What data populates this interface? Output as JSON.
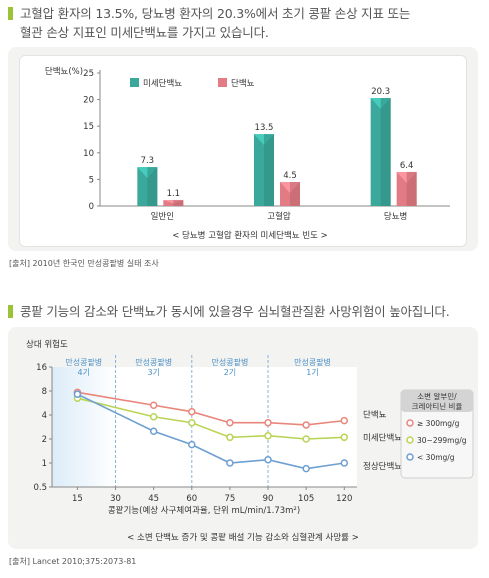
{
  "colors": {
    "accent": "#9cc23a",
    "teal": "#3aa89b",
    "pink": "#e27b84",
    "series": [
      "#e9867c",
      "#b9d455",
      "#6d9fd2"
    ],
    "band_fill": "#dcecf8",
    "band_label": "#4a90c9"
  },
  "section1": {
    "headline_line1": "고혈압 환자의 13.5%, 당뇨병 환자의 20.3%에서 초기 콩팥 손상 지표 또는",
    "headline_line2": "혈관 손상 지표인 미세단백뇨를 가지고 있습니다.",
    "source": "[출처] 2010년 한국인 만성콩팥병 실태 조사"
  },
  "section2": {
    "headline": "콩팥 기능의 감소와 단백뇨가 동시에 있을경우 심뇌혈관질환 사망위험이 높아집니다.",
    "source": "[출처] Lancet 2010;375:2073-81"
  },
  "chart_data": [
    {
      "type": "bar",
      "ylabel": "단백뇨(%)",
      "ylim": [
        0,
        25
      ],
      "yticks": [
        0,
        5,
        10,
        15,
        20,
        25
      ],
      "categories": [
        "일반인",
        "고혈압",
        "당뇨병"
      ],
      "series": [
        {
          "name": "미세단백뇨",
          "values": [
            7.3,
            13.5,
            20.3
          ],
          "labels": [
            "7.3",
            "13.5",
            "20.3"
          ]
        },
        {
          "name": "단백뇨",
          "values": [
            1.1,
            4.5,
            6.4
          ],
          "labels": [
            "1.1",
            "4.5",
            "6.4"
          ]
        }
      ],
      "legend": "top",
      "caption": "< 당뇨병 고혈압 환자의 미세단백뇨 빈도 >"
    },
    {
      "type": "line",
      "ylabel": "상대 위험도",
      "xlabel": "콩팥기능(예상 사구체여과율, 단위 mL/min/1.73m²)",
      "y_scale": "log",
      "ylim": [
        0.5,
        16
      ],
      "yticks": [
        0.5,
        1,
        2,
        4,
        8,
        16
      ],
      "ytick_labels": [
        "0.5",
        "1",
        "2",
        "4",
        "8",
        "16"
      ],
      "xlim": [
        5,
        125
      ],
      "xticks": [
        15,
        30,
        45,
        60,
        75,
        90,
        105,
        120
      ],
      "stage_boundaries": [
        30,
        60,
        90
      ],
      "stages": [
        {
          "label1": "만성콩팥병",
          "label2": "4기",
          "from": 5,
          "to": 30
        },
        {
          "label1": "만성콩팥병",
          "label2": "3기",
          "from": 30,
          "to": 60
        },
        {
          "label1": "만성콩팥병",
          "label2": "2기",
          "from": 60,
          "to": 90
        },
        {
          "label1": "만성콩팥병",
          "label2": "1기",
          "from": 90,
          "to": 125
        }
      ],
      "x": [
        15,
        45,
        60,
        75,
        90,
        105,
        120
      ],
      "series": [
        {
          "name": "단백뇨",
          "legend": "≥ 300mg/g",
          "values": [
            7.7,
            5.3,
            4.4,
            3.2,
            3.2,
            3.0,
            3.4
          ]
        },
        {
          "name": "미세단백뇨",
          "legend": "30~299mg/g",
          "values": [
            6.5,
            3.8,
            3.2,
            2.1,
            2.2,
            2.0,
            2.1
          ]
        },
        {
          "name": "정상단백뇨",
          "legend": "< 30mg/g",
          "values": [
            7.3,
            2.5,
            1.7,
            1.0,
            1.1,
            0.85,
            1.0
          ]
        }
      ],
      "legend_title_line1": "소변 알부민/",
      "legend_title_line2": "크레아티닌 비율",
      "legend": "right",
      "caption": "< 소변 단백뇨 증가 및 콩팥 배설 기능 감소와 심혈관계 사망률 >"
    }
  ]
}
